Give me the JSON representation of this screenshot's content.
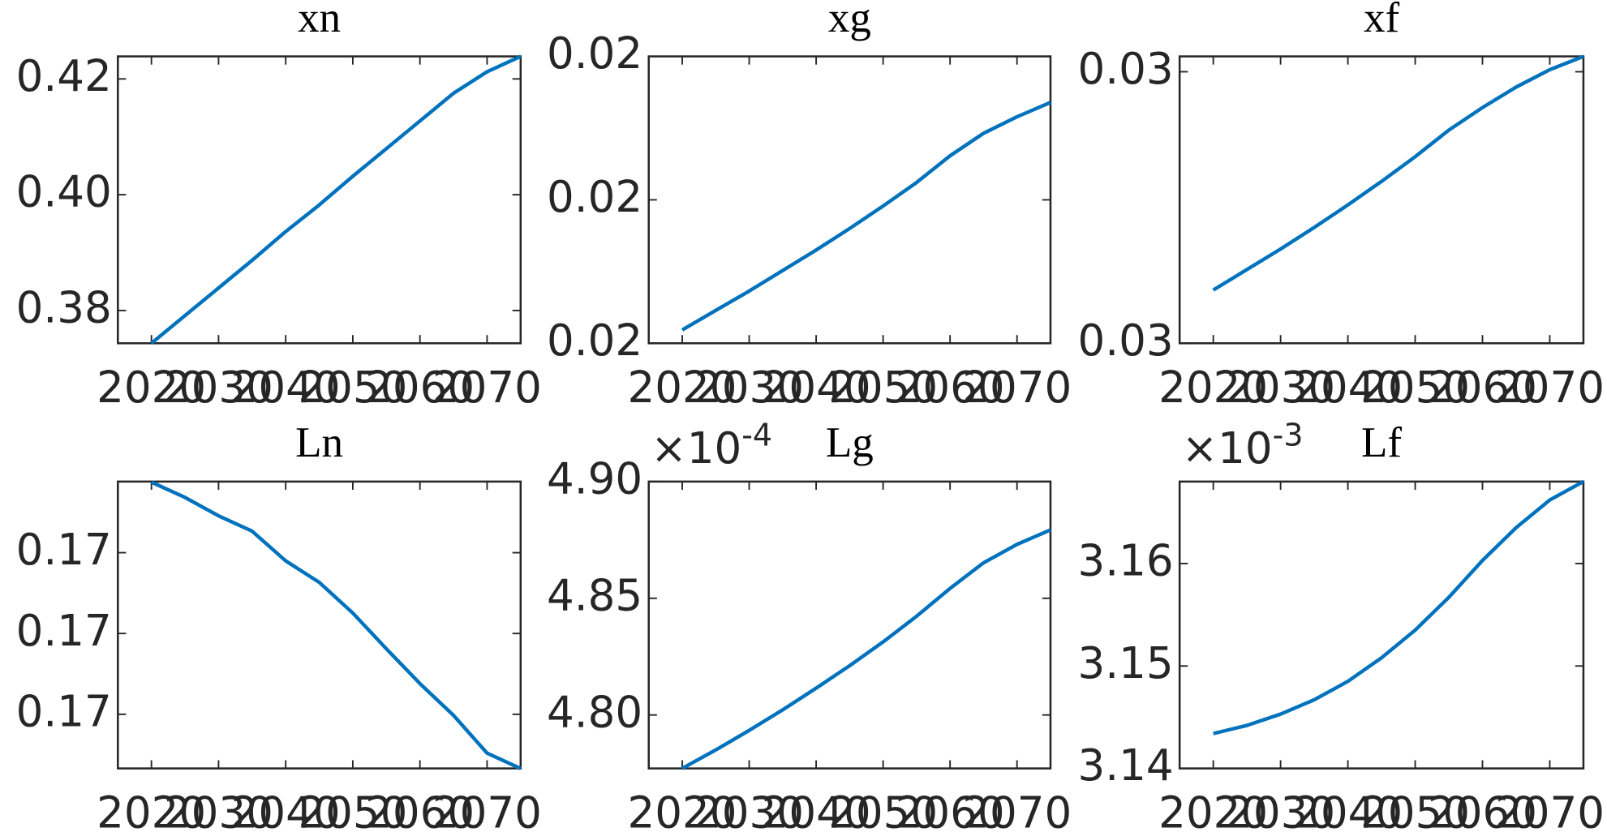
{
  "chart_data": [
    {
      "type": "line",
      "title": "xn",
      "x": [
        2020,
        2025,
        2030,
        2035,
        2040,
        2045,
        2050,
        2055,
        2060,
        2065,
        2070,
        2075
      ],
      "xlim": [
        2015,
        2075
      ],
      "xticks": [
        2020,
        2030,
        2040,
        2050,
        2060,
        2070
      ],
      "ylim": [
        0.37434,
        0.42389
      ],
      "yticks": [
        0.38,
        {
          "value": 0.4,
          "label": "0.40"
        },
        0.42
      ],
      "color": "#0072bd",
      "values": [
        0.37434,
        0.37912,
        0.38389,
        0.38867,
        0.39363,
        0.39823,
        0.40319,
        0.40796,
        0.41274,
        0.41752,
        0.42124,
        0.42389
      ]
    },
    {
      "type": "line",
      "title": "xg",
      "x": [
        2020,
        2025,
        2030,
        2035,
        2040,
        2045,
        2050,
        2055,
        2060,
        2065,
        2070,
        2075
      ],
      "xlim": [
        2015,
        2075
      ],
      "xticks": [
        2020,
        2030,
        2040,
        2050,
        2060,
        2070
      ],
      "ylim": [
        0.019,
        0.021
      ],
      "yticks": [
        {
          "value": 0.019,
          "label": "0.02"
        },
        0.02,
        {
          "value": 0.021,
          "label": "0.02"
        }
      ],
      "color": "#0072bd",
      "values": [
        0.019093,
        0.019229,
        0.019364,
        0.019507,
        0.01965,
        0.0198,
        0.019957,
        0.020121,
        0.020307,
        0.020464,
        0.020579,
        0.020679
      ]
    },
    {
      "type": "line",
      "title": "xf",
      "x": [
        2020,
        2025,
        2030,
        2035,
        2040,
        2045,
        2050,
        2055,
        2060,
        2065,
        2070,
        2075
      ],
      "xlim": [
        2015,
        2075
      ],
      "xticks": [
        2020,
        2030,
        2040,
        2050,
        2060,
        2070
      ],
      "ylim": [
        0.029,
        0.031113
      ],
      "yticks": [
        {
          "value": 0.029,
          "label": "0.03"
        },
        {
          "value": 0.031,
          "label": "0.03"
        }
      ],
      "color": "#0072bd",
      "values": [
        0.029392,
        0.029543,
        0.029694,
        0.029853,
        0.030019,
        0.030192,
        0.030374,
        0.03057,
        0.030736,
        0.030887,
        0.031015,
        0.031113
      ]
    },
    {
      "type": "line",
      "title": "Ln",
      "x": [
        2020,
        2025,
        2030,
        2035,
        2040,
        2045,
        2050,
        2055,
        2060,
        2065,
        2070,
        2075
      ],
      "xlim": [
        2015,
        2075
      ],
      "xticks": [
        2020,
        2030,
        2040,
        2050,
        2060,
        2070
      ],
      "ylim": [
        0.16833,
        0.17188
      ],
      "yticks": [
        {
          "value": 0.169,
          "label": "0.17"
        },
        0.17,
        {
          "value": 0.171,
          "label": "0.17"
        }
      ],
      "color": "#0072bd",
      "values": [
        0.171873,
        0.171684,
        0.171456,
        0.171266,
        0.170899,
        0.170633,
        0.170253,
        0.16981,
        0.16938,
        0.168987,
        0.168519,
        0.168329
      ]
    },
    {
      "type": "line",
      "title": "Lg",
      "y_multiplier": {
        "base": "×10",
        "exponent": "-4"
      },
      "x": [
        2020,
        2025,
        2030,
        2035,
        2040,
        2045,
        2050,
        2055,
        2060,
        2065,
        2070,
        2075
      ],
      "xlim": [
        2015,
        2075
      ],
      "xticks": [
        2020,
        2030,
        2040,
        2050,
        2060,
        2070
      ],
      "ylim": [
        4.7771,
        4.9
      ],
      "yticks": [
        {
          "value": 4.8,
          "label": "4.80"
        },
        4.85,
        {
          "value": 4.9,
          "label": "4.90"
        }
      ],
      "color": "#0072bd",
      "values": [
        4.7771,
        4.785,
        4.7934,
        4.8022,
        4.8115,
        4.8211,
        4.8313,
        4.8423,
        4.8542,
        4.8652,
        4.8731,
        4.8793
      ]
    },
    {
      "type": "line",
      "title": "Lf",
      "y_multiplier": {
        "base": "×10",
        "exponent": "-3"
      },
      "x": [
        2020,
        2025,
        2030,
        2035,
        2040,
        2045,
        2050,
        2055,
        2060,
        2065,
        2070,
        2075
      ],
      "xlim": [
        2015,
        2075
      ],
      "xticks": [
        2020,
        2030,
        2040,
        2050,
        2060,
        2070
      ],
      "ylim": [
        3.14,
        3.168
      ],
      "yticks": [
        3.14,
        3.15,
        3.16
      ],
      "color": "#0072bd",
      "values": [
        3.1434,
        3.1442,
        3.1453,
        3.1467,
        3.1485,
        3.1508,
        3.1535,
        3.1567,
        3.1603,
        3.1635,
        3.1662,
        3.168
      ]
    }
  ]
}
